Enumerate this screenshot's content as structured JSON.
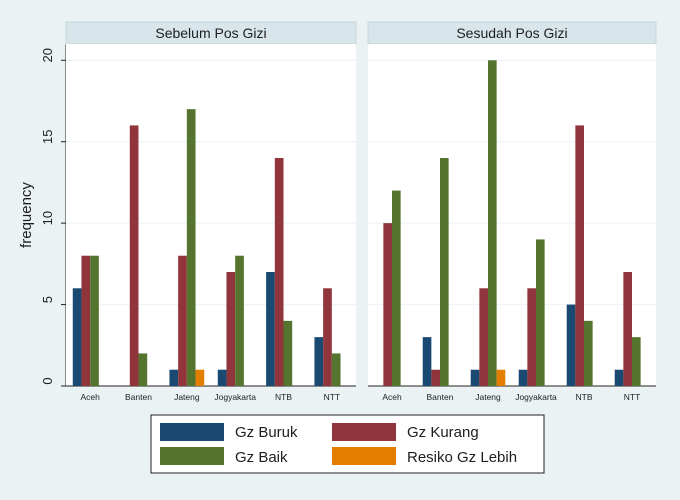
{
  "chart_data": {
    "type": "bar",
    "ylabel": "frequency",
    "ylim": [
      0,
      21
    ],
    "yticks": [
      0,
      5,
      10,
      15,
      20
    ],
    "categories": [
      "Aceh",
      "Banten",
      "Jateng",
      "Jogyakarta",
      "NTB",
      "NTT"
    ],
    "legend": {
      "placement": "bottom-center",
      "entries": [
        {
          "name": "Gz Buruk",
          "color": "#1a4a72"
        },
        {
          "name": "Gz Kurang",
          "color": "#90353b"
        },
        {
          "name": "Gz Baik",
          "color": "#55752f"
        },
        {
          "name": "Resiko Gz Lebih",
          "color": "#e37e00"
        }
      ]
    },
    "panels": [
      {
        "title": "Sebelum Pos Gizi",
        "series": [
          {
            "name": "Gz Buruk",
            "values": [
              6,
              0,
              1,
              1,
              7,
              3
            ]
          },
          {
            "name": "Gz Kurang",
            "values": [
              8,
              16,
              8,
              7,
              14,
              6
            ]
          },
          {
            "name": "Gz Baik",
            "values": [
              8,
              2,
              17,
              8,
              4,
              2
            ]
          },
          {
            "name": "Resiko Gz Lebih",
            "values": [
              0,
              0,
              1,
              0,
              0,
              0
            ]
          }
        ]
      },
      {
        "title": "Sesudah Pos Gizi",
        "series": [
          {
            "name": "Gz Buruk",
            "values": [
              0,
              3,
              1,
              1,
              5,
              1
            ]
          },
          {
            "name": "Gz Kurang",
            "values": [
              10,
              1,
              6,
              6,
              16,
              7
            ]
          },
          {
            "name": "Gz Baik",
            "values": [
              12,
              14,
              20,
              9,
              4,
              3
            ]
          },
          {
            "name": "Resiko Gz Lebih",
            "values": [
              0,
              0,
              1,
              0,
              0,
              0
            ]
          }
        ]
      }
    ]
  }
}
